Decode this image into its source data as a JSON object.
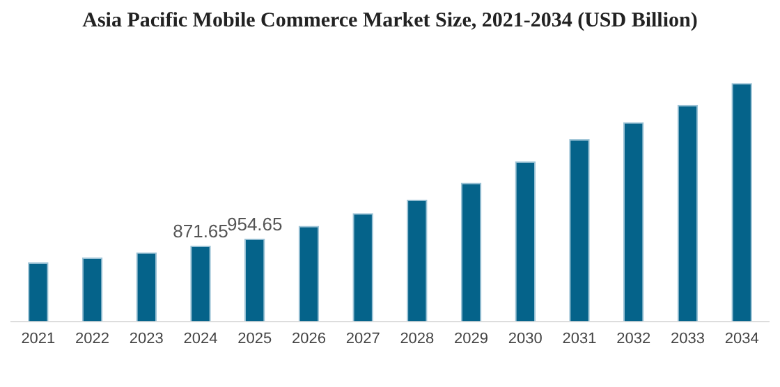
{
  "chart_data": {
    "type": "bar",
    "title": "Asia Pacific Mobile Commerce Market Size, 2021-2034 (USD Billion)",
    "categories": [
      "2021",
      "2022",
      "2023",
      "2024",
      "2025",
      "2026",
      "2027",
      "2028",
      "2029",
      "2030",
      "2031",
      "2032",
      "2033",
      "2034"
    ],
    "values": [
      679,
      735,
      796,
      871.65,
      954.65,
      1100,
      1248,
      1405,
      1598,
      1846,
      2100,
      2298,
      2496,
      2749
    ],
    "value_labels": [
      null,
      null,
      null,
      "871.65",
      "954.65",
      null,
      null,
      null,
      null,
      null,
      null,
      null,
      null,
      null
    ],
    "color": "#05638a",
    "grid": false,
    "legend": false
  }
}
